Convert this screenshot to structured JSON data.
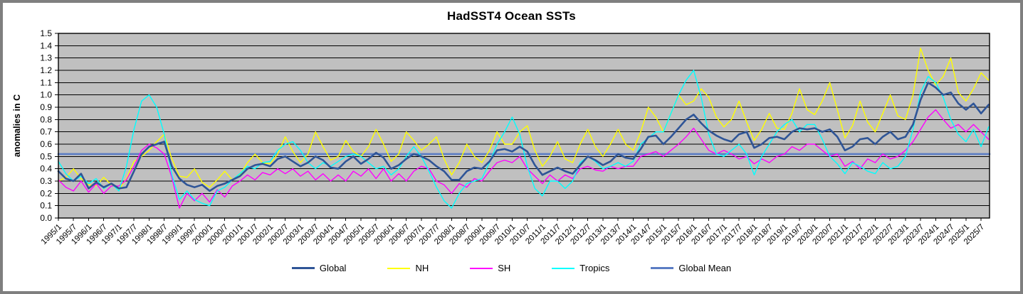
{
  "chart_data": {
    "type": "line",
    "title": "HadSST4 Ocean SSTs",
    "xlabel": "",
    "ylabel": "anomalies in C",
    "ylim": [
      0.0,
      1.5
    ],
    "y_ticks": [
      "0.0",
      "0.1",
      "0.2",
      "0.3",
      "0.4",
      "0.5",
      "0.6",
      "0.7",
      "0.8",
      "0.9",
      "1.0",
      "1.1",
      "1.2",
      "1.3",
      "1.4",
      "1.5"
    ],
    "x_domain": [
      1995.0,
      2025.78
    ],
    "x_tick_step_years": 0.5,
    "x_ticks": [
      "1995/1",
      "1995/7",
      "1996/1",
      "1996/7",
      "1997/1",
      "1997/7",
      "1998/1",
      "1998/7",
      "1999/1",
      "1999/7",
      "2000/1",
      "2000/7",
      "2001/1",
      "2001/7",
      "2002/1",
      "2002/7",
      "2003/1",
      "2003/7",
      "2004/1",
      "2004/7",
      "2005/1",
      "2005/7",
      "2006/1",
      "2006/7",
      "2007/1",
      "2007/7",
      "2008/1",
      "2008/7",
      "2009/1",
      "2009/7",
      "2010/1",
      "2010/7",
      "2011/1",
      "2011/7",
      "2012/1",
      "2012/7",
      "2013/1",
      "2013/7",
      "2014/1",
      "2014/7",
      "2015/1",
      "2015/7",
      "2016/1",
      "2016/7",
      "2017/1",
      "2017/7",
      "2018/1",
      "2018/7",
      "2019/1",
      "2019/7",
      "2020/1",
      "2020/7",
      "2021/1",
      "2021/7",
      "2022/1",
      "2022/7",
      "2023/1",
      "2023/7",
      "2024/1",
      "2024/7",
      "2025/1",
      "2025/7"
    ],
    "x_start": 1995.0,
    "x_step": 0.25,
    "grid": "horizontal",
    "grid_color": "#000000",
    "plot_bg": "#c0c0c0",
    "legend_position": "bottom",
    "series": [
      {
        "name": "Global",
        "color": "#2f5597",
        "width": 2.6,
        "z": 5,
        "values": [
          0.38,
          0.32,
          0.3,
          0.36,
          0.24,
          0.29,
          0.25,
          0.28,
          0.24,
          0.25,
          0.38,
          0.52,
          0.58,
          0.6,
          0.62,
          0.42,
          0.32,
          0.27,
          0.25,
          0.27,
          0.22,
          0.26,
          0.28,
          0.31,
          0.34,
          0.4,
          0.43,
          0.44,
          0.42,
          0.48,
          0.5,
          0.46,
          0.42,
          0.45,
          0.5,
          0.47,
          0.41,
          0.4,
          0.46,
          0.5,
          0.44,
          0.48,
          0.53,
          0.49,
          0.4,
          0.43,
          0.48,
          0.52,
          0.5,
          0.47,
          0.42,
          0.38,
          0.31,
          0.31,
          0.38,
          0.41,
          0.4,
          0.46,
          0.55,
          0.56,
          0.54,
          0.58,
          0.54,
          0.43,
          0.35,
          0.38,
          0.41,
          0.38,
          0.36,
          0.43,
          0.5,
          0.47,
          0.43,
          0.46,
          0.52,
          0.49,
          0.48,
          0.56,
          0.66,
          0.67,
          0.6,
          0.66,
          0.73,
          0.8,
          0.84,
          0.77,
          0.71,
          0.67,
          0.64,
          0.62,
          0.68,
          0.7,
          0.57,
          0.6,
          0.65,
          0.66,
          0.64,
          0.7,
          0.73,
          0.72,
          0.73,
          0.7,
          0.72,
          0.66,
          0.55,
          0.58,
          0.64,
          0.65,
          0.6,
          0.66,
          0.7,
          0.64,
          0.66,
          0.76,
          0.96,
          1.1,
          1.06,
          1.0,
          1.02,
          0.93,
          0.88,
          0.93,
          0.85,
          0.92
        ]
      },
      {
        "name": "NH",
        "color": "#ffff00",
        "width": 1.4,
        "z": 2,
        "values": [
          0.3,
          0.33,
          0.4,
          0.32,
          0.27,
          0.26,
          0.33,
          0.27,
          0.23,
          0.32,
          0.46,
          0.5,
          0.55,
          0.62,
          0.68,
          0.48,
          0.34,
          0.33,
          0.4,
          0.29,
          0.25,
          0.31,
          0.38,
          0.31,
          0.35,
          0.45,
          0.52,
          0.45,
          0.44,
          0.52,
          0.66,
          0.54,
          0.45,
          0.52,
          0.7,
          0.58,
          0.47,
          0.5,
          0.63,
          0.54,
          0.5,
          0.58,
          0.72,
          0.6,
          0.46,
          0.52,
          0.7,
          0.63,
          0.55,
          0.6,
          0.66,
          0.48,
          0.35,
          0.45,
          0.6,
          0.5,
          0.45,
          0.55,
          0.7,
          0.6,
          0.6,
          0.7,
          0.75,
          0.55,
          0.42,
          0.5,
          0.62,
          0.48,
          0.45,
          0.6,
          0.72,
          0.58,
          0.5,
          0.6,
          0.72,
          0.6,
          0.55,
          0.7,
          0.9,
          0.82,
          0.7,
          0.85,
          1.0,
          0.92,
          0.95,
          1.05,
          0.98,
          0.82,
          0.74,
          0.8,
          0.95,
          0.78,
          0.63,
          0.72,
          0.85,
          0.73,
          0.72,
          0.85,
          1.05,
          0.88,
          0.84,
          0.95,
          1.1,
          0.88,
          0.65,
          0.75,
          0.95,
          0.78,
          0.7,
          0.85,
          1.0,
          0.83,
          0.8,
          1.0,
          1.38,
          1.2,
          1.08,
          1.15,
          1.3,
          1.02,
          0.95,
          1.05,
          1.18,
          1.12
        ]
      },
      {
        "name": "SH",
        "color": "#ff00ff",
        "width": 1.4,
        "z": 3,
        "values": [
          0.31,
          0.25,
          0.22,
          0.3,
          0.21,
          0.28,
          0.2,
          0.26,
          0.26,
          0.31,
          0.42,
          0.55,
          0.6,
          0.57,
          0.52,
          0.33,
          0.08,
          0.2,
          0.14,
          0.2,
          0.13,
          0.23,
          0.17,
          0.26,
          0.3,
          0.35,
          0.31,
          0.37,
          0.35,
          0.4,
          0.36,
          0.4,
          0.34,
          0.38,
          0.31,
          0.36,
          0.3,
          0.35,
          0.3,
          0.38,
          0.34,
          0.4,
          0.32,
          0.4,
          0.3,
          0.36,
          0.3,
          0.38,
          0.42,
          0.4,
          0.3,
          0.27,
          0.2,
          0.28,
          0.25,
          0.32,
          0.3,
          0.38,
          0.45,
          0.47,
          0.45,
          0.5,
          0.4,
          0.34,
          0.28,
          0.35,
          0.3,
          0.35,
          0.32,
          0.4,
          0.42,
          0.39,
          0.38,
          0.42,
          0.4,
          0.42,
          0.42,
          0.5,
          0.52,
          0.54,
          0.5,
          0.55,
          0.6,
          0.66,
          0.73,
          0.64,
          0.55,
          0.52,
          0.55,
          0.52,
          0.48,
          0.5,
          0.44,
          0.48,
          0.45,
          0.5,
          0.52,
          0.58,
          0.55,
          0.6,
          0.6,
          0.55,
          0.5,
          0.52,
          0.42,
          0.46,
          0.4,
          0.48,
          0.45,
          0.52,
          0.48,
          0.5,
          0.55,
          0.62,
          0.72,
          0.82,
          0.88,
          0.8,
          0.73,
          0.76,
          0.7,
          0.76,
          0.7,
          0.64
        ]
      },
      {
        "name": "Tropics",
        "color": "#00ffff",
        "width": 1.4,
        "z": 4,
        "values": [
          0.46,
          0.36,
          0.3,
          0.34,
          0.28,
          0.32,
          0.24,
          0.28,
          0.22,
          0.42,
          0.72,
          0.95,
          1.0,
          0.9,
          0.68,
          0.35,
          0.15,
          0.22,
          0.15,
          0.12,
          0.1,
          0.22,
          0.25,
          0.31,
          0.36,
          0.42,
          0.4,
          0.45,
          0.46,
          0.55,
          0.6,
          0.62,
          0.55,
          0.45,
          0.4,
          0.45,
          0.42,
          0.46,
          0.5,
          0.52,
          0.5,
          0.45,
          0.4,
          0.42,
          0.35,
          0.4,
          0.5,
          0.58,
          0.5,
          0.38,
          0.25,
          0.14,
          0.08,
          0.2,
          0.28,
          0.3,
          0.32,
          0.45,
          0.6,
          0.7,
          0.82,
          0.68,
          0.42,
          0.24,
          0.18,
          0.3,
          0.3,
          0.24,
          0.3,
          0.45,
          0.5,
          0.46,
          0.4,
          0.42,
          0.45,
          0.42,
          0.46,
          0.6,
          0.65,
          0.7,
          0.7,
          0.85,
          1.0,
          1.12,
          1.2,
          0.98,
          0.68,
          0.52,
          0.5,
          0.55,
          0.6,
          0.52,
          0.35,
          0.5,
          0.6,
          0.7,
          0.76,
          0.8,
          0.7,
          0.76,
          0.76,
          0.64,
          0.5,
          0.44,
          0.36,
          0.45,
          0.42,
          0.38,
          0.36,
          0.45,
          0.4,
          0.42,
          0.5,
          0.72,
          1.02,
          1.15,
          1.1,
          0.98,
          0.8,
          0.68,
          0.62,
          0.72,
          0.58,
          0.74
        ]
      },
      {
        "name": "Global Mean",
        "color": "#5b7dc4",
        "width": 2.6,
        "z": 1,
        "constant": 0.52
      }
    ]
  },
  "colors": {
    "frame_border": "#7f7f7f",
    "background": "#ffffff",
    "plot_background": "#c0c0c0",
    "gridline": "#000000"
  }
}
